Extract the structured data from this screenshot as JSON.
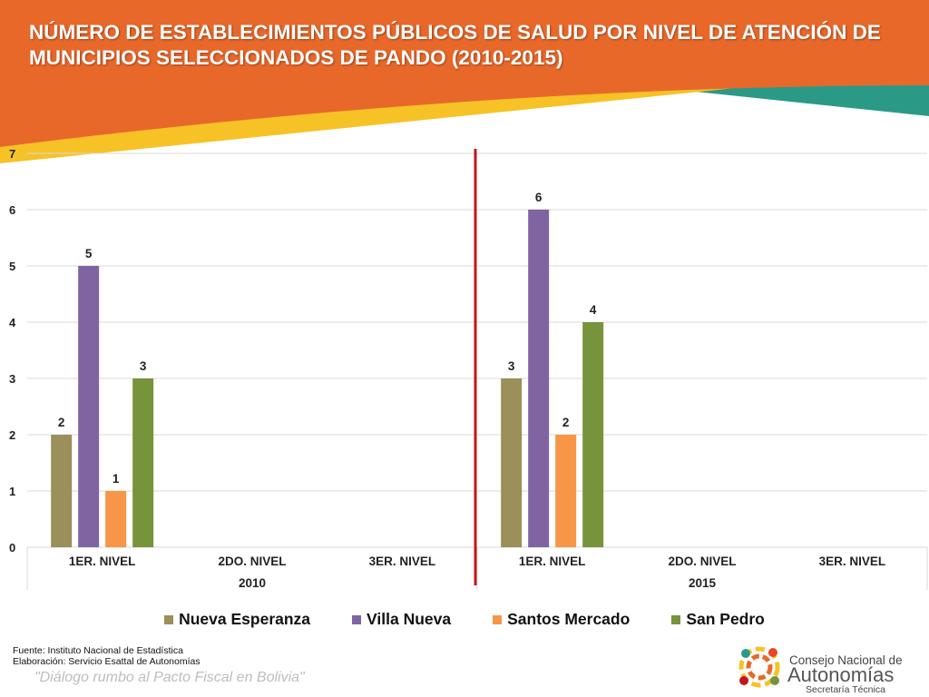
{
  "header": {
    "title": "NÚMERO DE ESTABLECIMIENTOS PÚBLICOS DE SALUD POR NIVEL DE ATENCIÓN DE MUNICIPIOS SELECCIONADOS DE PANDO (2010-2015)"
  },
  "colors": {
    "orange": "#e8682a",
    "yellow": "#f6c226",
    "teal": "#2a9a86",
    "divider": "#c0171d"
  },
  "chart_data": {
    "type": "bar",
    "title": "NÚMERO DE ESTABLECIMIENTOS PÚBLICOS DE SALUD POR NIVEL DE ATENCIÓN DE MUNICIPIOS SELECCIONADOS DE PANDO (2010-2015)",
    "groups": [
      "2010",
      "2015"
    ],
    "categories": [
      "1ER. NIVEL",
      "2DO. NIVEL",
      "3ER. NIVEL"
    ],
    "ylim": [
      0,
      7
    ],
    "yticks": [
      "0",
      "1",
      "2",
      "3",
      "4",
      "5",
      "6",
      "7"
    ],
    "grid": true,
    "legend_position": "bottom",
    "series": [
      {
        "name": "Nueva Esperanza",
        "color": "#9b8f5a",
        "values": [
          [
            2,
            null,
            null
          ],
          [
            3,
            null,
            null
          ]
        ]
      },
      {
        "name": "Villa Nueva",
        "color": "#8064a2",
        "values": [
          [
            5,
            null,
            null
          ],
          [
            6,
            null,
            null
          ]
        ]
      },
      {
        "name": "Santos Mercado",
        "color": "#f79646",
        "values": [
          [
            1,
            null,
            null
          ],
          [
            2,
            null,
            null
          ]
        ]
      },
      {
        "name": "San Pedro",
        "color": "#77933c",
        "values": [
          [
            3,
            null,
            null
          ],
          [
            4,
            null,
            null
          ]
        ]
      }
    ]
  },
  "footer": {
    "source": "Fuente: Instituto Nacional de Estadística",
    "elaboration": "Elaboración: Servicio Esattal de Autonomías",
    "slogan": "\"Diálogo rumbo al Pacto Fiscal en Bolivia\""
  },
  "logo": {
    "line1": "Consejo Nacional de",
    "line2": "Autonomías",
    "line3": "Secretaría Técnica"
  }
}
